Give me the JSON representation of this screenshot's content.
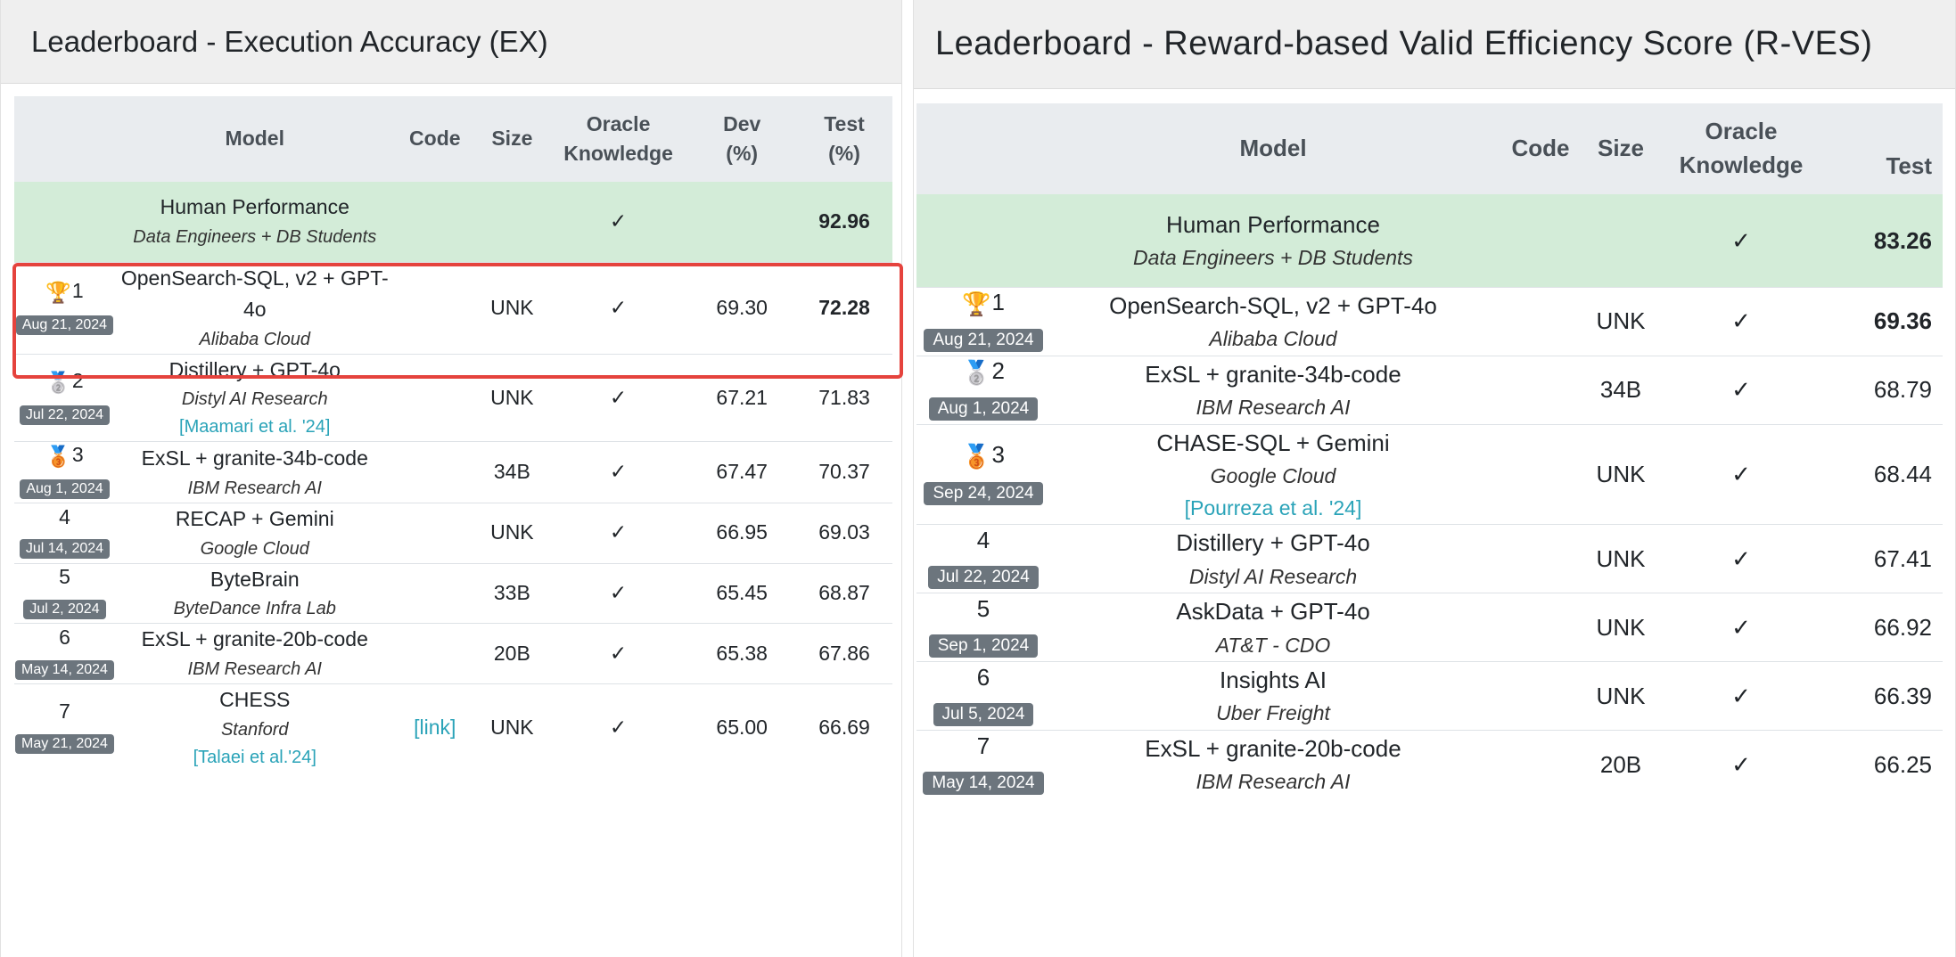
{
  "left": {
    "title": "Leaderboard - Execution Accuracy (EX)",
    "headers": {
      "model": "Model",
      "code": "Code",
      "size": "Size",
      "oracle_1": "Oracle",
      "oracle_2": "Knowledge",
      "dev_1": "Dev",
      "dev_2": "(%)",
      "test_1": "Test",
      "test_2": "(%)"
    },
    "human": {
      "name": "Human Performance",
      "affiliation": "Data Engineers + DB Students",
      "oracle": "✓",
      "test": "92.96"
    },
    "rows": [
      {
        "rank": "1",
        "medal": "🏆",
        "date": "Aug 21, 2024",
        "model_1": "OpenSearch-SQL, v2 + GPT-",
        "model_2": "4o",
        "affiliation": "Alibaba Cloud",
        "cite": "",
        "code": "",
        "size": "UNK",
        "oracle": "✓",
        "dev": "69.30",
        "test": "72.28"
      },
      {
        "rank": "2",
        "medal": "🥈",
        "date": "Jul 22, 2024",
        "model_1": "Distillery + GPT-4o",
        "model_2": "",
        "affiliation": "Distyl AI Research",
        "cite": "[Maamari et al. '24]",
        "code": "",
        "size": "UNK",
        "oracle": "✓",
        "dev": "67.21",
        "test": "71.83"
      },
      {
        "rank": "3",
        "medal": "🥉",
        "date": "Aug 1, 2024",
        "model_1": "ExSL + granite-34b-code",
        "model_2": "",
        "affiliation": "IBM Research AI",
        "cite": "",
        "code": "",
        "size": "34B",
        "oracle": "✓",
        "dev": "67.47",
        "test": "70.37"
      },
      {
        "rank": "4",
        "medal": "",
        "date": "Jul 14, 2024",
        "model_1": "RECAP + Gemini",
        "model_2": "",
        "affiliation": "Google Cloud",
        "cite": "",
        "code": "",
        "size": "UNK",
        "oracle": "✓",
        "dev": "66.95",
        "test": "69.03"
      },
      {
        "rank": "5",
        "medal": "",
        "date": "Jul 2, 2024",
        "model_1": "ByteBrain",
        "model_2": "",
        "affiliation": "ByteDance Infra Lab",
        "cite": "",
        "code": "",
        "size": "33B",
        "oracle": "✓",
        "dev": "65.45",
        "test": "68.87"
      },
      {
        "rank": "6",
        "medal": "",
        "date": "May 14, 2024",
        "model_1": "ExSL + granite-20b-code",
        "model_2": "",
        "affiliation": "IBM Research AI",
        "cite": "",
        "code": "",
        "size": "20B",
        "oracle": "✓",
        "dev": "65.38",
        "test": "67.86"
      },
      {
        "rank": "7",
        "medal": "",
        "date": "May 21, 2024",
        "model_1": "CHESS",
        "model_2": "",
        "affiliation": "Stanford",
        "cite": "[Talaei et al.'24]",
        "code": "[link]",
        "size": "UNK",
        "oracle": "✓",
        "dev": "65.00",
        "test": "66.69"
      }
    ]
  },
  "right": {
    "title": "Leaderboard - Reward-based Valid Efficiency Score (R-VES)",
    "headers": {
      "model": "Model",
      "code": "Code",
      "size": "Size",
      "oracle_1": "Oracle",
      "oracle_2": "Knowledge",
      "test": "Test"
    },
    "human": {
      "name": "Human Performance",
      "affiliation": "Data Engineers + DB Students",
      "oracle": "✓",
      "test": "83.26"
    },
    "rows": [
      {
        "rank": "1",
        "medal": "🏆",
        "date": "Aug 21, 2024",
        "model": "OpenSearch-SQL, v2 + GPT-4o",
        "affiliation": "Alibaba Cloud",
        "cite": "",
        "size": "UNK",
        "oracle": "✓",
        "test": "69.36"
      },
      {
        "rank": "2",
        "medal": "🥈",
        "date": "Aug 1, 2024",
        "model": "ExSL + granite-34b-code",
        "affiliation": "IBM Research AI",
        "cite": "",
        "size": "34B",
        "oracle": "✓",
        "test": "68.79"
      },
      {
        "rank": "3",
        "medal": "🥉",
        "date": "Sep 24, 2024",
        "model": "CHASE-SQL + Gemini",
        "affiliation": "Google Cloud",
        "cite": "[Pourreza et al. '24]",
        "size": "UNK",
        "oracle": "✓",
        "test": "68.44"
      },
      {
        "rank": "4",
        "medal": "",
        "date": "Jul 22, 2024",
        "model": "Distillery + GPT-4o",
        "affiliation": "Distyl AI Research",
        "cite": "",
        "size": "UNK",
        "oracle": "✓",
        "test": "67.41"
      },
      {
        "rank": "5",
        "medal": "",
        "date": "Sep 1, 2024",
        "model": "AskData + GPT-4o",
        "affiliation": "AT&T - CDO",
        "cite": "",
        "size": "UNK",
        "oracle": "✓",
        "test": "66.92"
      },
      {
        "rank": "6",
        "medal": "",
        "date": "Jul 5, 2024",
        "model": "Insights AI",
        "affiliation": "Uber Freight",
        "cite": "",
        "size": "UNK",
        "oracle": "✓",
        "test": "66.39"
      },
      {
        "rank": "7",
        "medal": "",
        "date": "May 14, 2024",
        "model": "ExSL + granite-20b-code",
        "affiliation": "IBM Research AI",
        "cite": "",
        "size": "20B",
        "oracle": "✓",
        "test": "66.25"
      }
    ]
  },
  "colors": {
    "human_row": "#d3ecd8",
    "header_bg": "#e9ecef",
    "badge": "#6c757d",
    "highlight": "#e5433d",
    "link": "#2aa3b8"
  }
}
